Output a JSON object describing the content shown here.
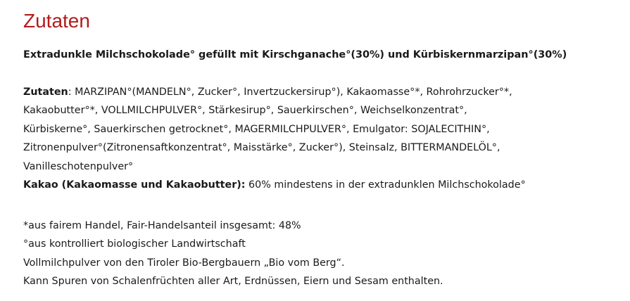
{
  "heading": "Zutaten",
  "subtitle": "Extradunkle Milchschokolade° gefüllt mit Kirschganache°(30%) und Kürbiskernmarzipan°(30%)",
  "ingredients": {
    "label": "Zutaten",
    "lines": [
      ": MARZIPAN°(MANDELN°, Zucker°, Invertzuckersirup°), Kakaomasse°*, Rohrohrzucker°*,",
      "Kakaobutter°*, VOLLMILCHPULVER°, Stärkesirup°, Sauerkirschen°, Weichselkonzentrat°,",
      "Kürbiskerne°, Sauerkirschen getrocknet°, MAGERMILCHPULVER°, Emulgator: SOJALECITHIN°,",
      "Zitronenpulver°(Zitronensaftkonzentrat°, Maisstärke°, Zucker°), Steinsalz, BITTERMANDELÖL°,",
      "Vanilleschotenpulver°"
    ]
  },
  "cocoa": {
    "label": "Kakao (Kakaomasse und Kakaobutter):",
    "text": " 60% mindestens in der extradunklen Milchschokolade°"
  },
  "notes": [
    "*aus fairem Handel, Fair-Handelsanteil insgesamt: 48%",
    "°aus kontrolliert biologischer Landwirtschaft",
    "Vollmilchpulver von den Tiroler Bio-Bergbauern „Bio vom Berg“.",
    "Kann Spuren von Schalenfrüchten aller Art, Erdnüssen, Eiern und Sesam enthalten."
  ]
}
